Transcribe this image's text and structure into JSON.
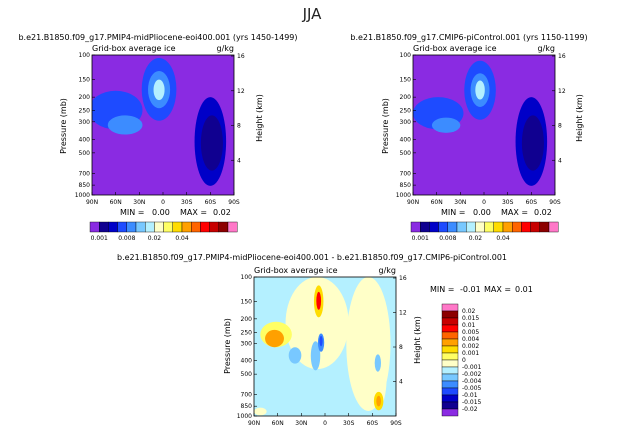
{
  "page": {
    "title": "JJA"
  },
  "colorbars": {
    "full": {
      "colors": [
        "#8a2be2",
        "#100090",
        "#0000c8",
        "#1e4bff",
        "#3c8cff",
        "#78c8ff",
        "#b4f0ff",
        "#ffffc8",
        "#ffff64",
        "#ffdc00",
        "#ffa000",
        "#ff6400",
        "#ff0000",
        "#c80000",
        "#8c0000",
        "#ff78c8"
      ],
      "labels": [
        {
          "text": "0.001",
          "pos": 1
        },
        {
          "text": "0.008",
          "pos": 4
        },
        {
          "text": "0.02",
          "pos": 7
        },
        {
          "text": "0.04",
          "pos": 10
        }
      ]
    },
    "diff": {
      "colors": [
        "#ff78c8",
        "#8c0000",
        "#c80000",
        "#ff0000",
        "#ff6400",
        "#ffa000",
        "#ffdc00",
        "#ffff64",
        "#ffffc8",
        "#b4f0ff",
        "#78c8ff",
        "#3c8cff",
        "#1e4bff",
        "#0000c8",
        "#100090",
        "#8a2be2"
      ],
      "labels": [
        "0.02",
        "0.015",
        "0.01",
        "0.005",
        "0.004",
        "0.002",
        "0.001",
        "0",
        "-0.001",
        "-0.002",
        "-0.004",
        "-0.005",
        "-0.01",
        "-0.015",
        "-0.02"
      ]
    }
  },
  "chart_data": [
    {
      "type": "heatmap",
      "title": "b.e21.B1850.f09_g17.PMIP4-midPliocene-eoi400.001 (yrs 1450-1499)",
      "subtitle": "Grid-box average ice",
      "units": "g/kg",
      "ylabel": "Pressure (mb)",
      "y2label": "Height (km)",
      "xticks": [
        "90N",
        "60N",
        "30N",
        "0",
        "30S",
        "60S",
        "90S"
      ],
      "yticks": [
        "100",
        "150",
        "200",
        "250",
        "300",
        "400",
        "500",
        "700",
        "850",
        "1000"
      ],
      "y2ticks": [
        "16",
        "12",
        "8",
        "4"
      ],
      "xlim": [
        90,
        -90
      ],
      "ylim": [
        1000,
        100
      ],
      "stats": {
        "min_label": "MIN =",
        "min": "0.00",
        "max_label": "MAX =",
        "max": "0.02"
      },
      "background": "#8a2be2",
      "features": [
        {
          "lat": 60,
          "p": 260,
          "rx": 34,
          "rp": 80,
          "level": 3
        },
        {
          "lat": 48,
          "p": 320,
          "rx": 22,
          "rp": 50,
          "level": 4
        },
        {
          "lat": 5,
          "p": 200,
          "rx": 22,
          "rp": 95,
          "level": 3
        },
        {
          "lat": 5,
          "p": 185,
          "rx": 14,
          "rp": 55,
          "level": 4
        },
        {
          "lat": 5,
          "p": 180,
          "rx": 7,
          "rp": 30,
          "level": 6
        },
        {
          "lat": -60,
          "p": 530,
          "rx": 20,
          "rp": 330,
          "level": 2
        },
        {
          "lat": -62,
          "p": 470,
          "rx": 14,
          "rp": 200,
          "level": 1
        }
      ]
    },
    {
      "type": "heatmap",
      "title": "b.e21.B1850.f09_g17.CMIP6-piControl.001 (yrs 1150-1199)",
      "subtitle": "Grid-box average ice",
      "units": "g/kg",
      "ylabel": "Pressure (mb)",
      "y2label": "Height (km)",
      "xticks": [
        "90N",
        "60N",
        "30N",
        "0",
        "30S",
        "60S",
        "90S"
      ],
      "yticks": [
        "100",
        "150",
        "200",
        "250",
        "300",
        "400",
        "500",
        "700",
        "850",
        "1000"
      ],
      "y2ticks": [
        "16",
        "12",
        "8",
        "4"
      ],
      "xlim": [
        90,
        -90
      ],
      "ylim": [
        1000,
        100
      ],
      "stats": {
        "min_label": "MIN =",
        "min": "0.00",
        "max_label": "MAX =",
        "max": "0.02"
      },
      "background": "#8a2be2",
      "features": [
        {
          "lat": 58,
          "p": 270,
          "rx": 32,
          "rp": 70,
          "level": 3
        },
        {
          "lat": 48,
          "p": 320,
          "rx": 18,
          "rp": 40,
          "level": 4
        },
        {
          "lat": 5,
          "p": 200,
          "rx": 20,
          "rp": 90,
          "level": 3
        },
        {
          "lat": 5,
          "p": 185,
          "rx": 12,
          "rp": 50,
          "level": 4
        },
        {
          "lat": 5,
          "p": 180,
          "rx": 6,
          "rp": 28,
          "level": 6
        },
        {
          "lat": -60,
          "p": 530,
          "rx": 20,
          "rp": 330,
          "level": 2
        },
        {
          "lat": -62,
          "p": 470,
          "rx": 14,
          "rp": 200,
          "level": 1
        }
      ]
    },
    {
      "type": "heatmap",
      "title": "b.e21.B1850.f09_g17.PMIP4-midPliocene-eoi400.001 - b.e21.B1850.f09_g17.CMIP6-piControl.001",
      "subtitle": "Grid-box average ice",
      "units": "g/kg",
      "ylabel": "Pressure (mb)",
      "y2label": "Height (km)",
      "xticks": [
        "90N",
        "60N",
        "30N",
        "0",
        "30S",
        "60S",
        "90S"
      ],
      "yticks": [
        "100",
        "150",
        "200",
        "250",
        "300",
        "400",
        "500",
        "700",
        "850",
        "1000"
      ],
      "y2ticks": [
        "16",
        "12",
        "8",
        "4"
      ],
      "xlim": [
        90,
        -90
      ],
      "ylim": [
        1000,
        100
      ],
      "stats": {
        "min_label": "MIN =",
        "min": "-0.01",
        "max_label": "MAX =",
        "max": "0.01"
      },
      "background": "#b4f0ff",
      "features": [
        {
          "lat": 10,
          "p": 230,
          "rx": 40,
          "rp": 230,
          "color": "#ffffc8"
        },
        {
          "lat": -68,
          "p": 600,
          "rx": 10,
          "rp": 260,
          "color": "#ffffc8"
        },
        {
          "lat": -55,
          "p": 500,
          "rx": 28,
          "rp": 420,
          "color": "#ffffc8"
        },
        {
          "lat": 82,
          "p": 930,
          "rx": 8,
          "rp": 60,
          "color": "#ffffc8"
        },
        {
          "lat": 38,
          "p": 370,
          "rx": 8,
          "rp": 50,
          "color": "#78c8ff"
        },
        {
          "lat": 12,
          "p": 380,
          "rx": 6,
          "rp": 90,
          "color": "#78c8ff"
        },
        {
          "lat": 62,
          "p": 265,
          "rx": 20,
          "rp": 55,
          "color": "#ffff64"
        },
        {
          "lat": 64,
          "p": 280,
          "rx": 12,
          "rp": 40,
          "color": "#ffa000"
        },
        {
          "lat": 8,
          "p": 155,
          "rx": 6,
          "rp": 40,
          "color": "#ffdc00"
        },
        {
          "lat": 8,
          "p": 150,
          "rx": 3,
          "rp": 22,
          "color": "#ff0000"
        },
        {
          "lat": 5,
          "p": 300,
          "rx": 4,
          "rp": 45,
          "color": "#3c8cff"
        },
        {
          "lat": 5,
          "p": 290,
          "rx": 2,
          "rp": 25,
          "color": "#1e4bff"
        },
        {
          "lat": -68,
          "p": 790,
          "rx": 6,
          "rp": 120,
          "color": "#ffdc00"
        },
        {
          "lat": -68,
          "p": 785,
          "rx": 3,
          "rp": 70,
          "color": "#ffa000"
        },
        {
          "lat": -67,
          "p": 420,
          "rx": 4,
          "rp": 60,
          "color": "#78c8ff"
        }
      ]
    }
  ]
}
